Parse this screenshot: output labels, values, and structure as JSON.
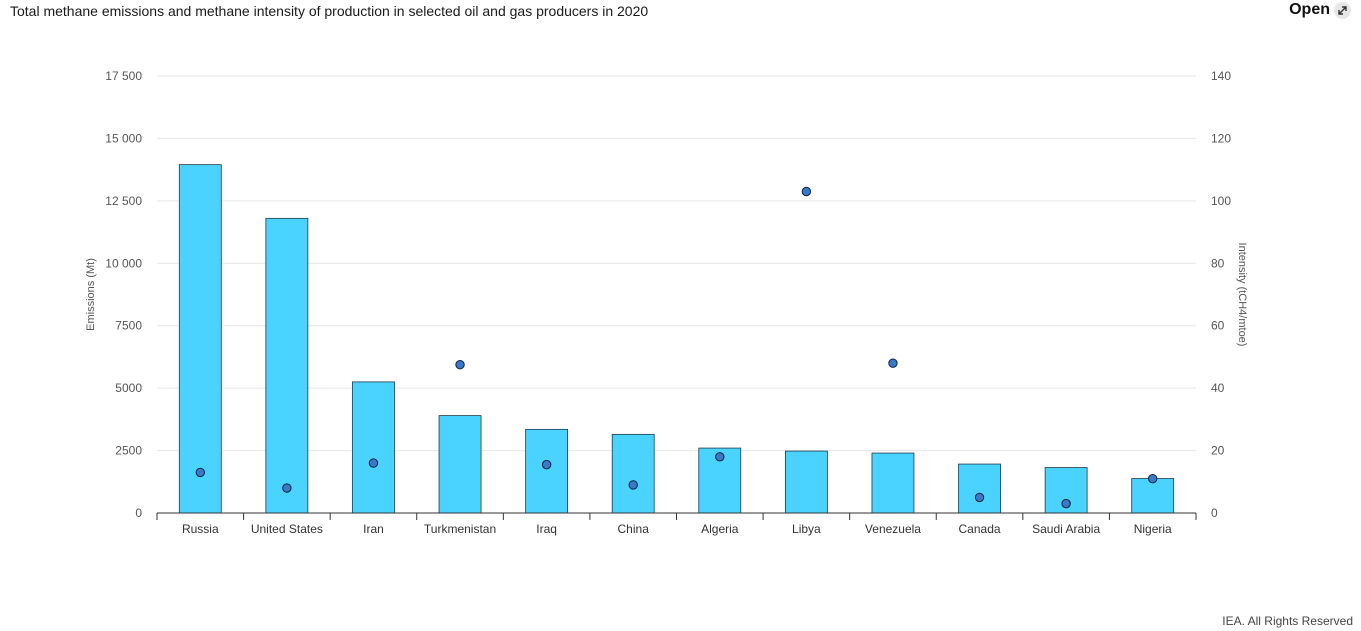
{
  "header": {
    "title": "Total methane emissions and methane intensity of production in selected oil and gas producers in 2020",
    "open_label": "Open"
  },
  "footer": {
    "credit": "IEA. All Rights Reserved"
  },
  "colors": {
    "bar": "#4ad3ff",
    "bar_stroke": "#1c3a4a",
    "dot": "#3a78c9",
    "dot_stroke": "#0d2440",
    "grid": "#e6e6e6"
  },
  "chart_data": {
    "type": "bar",
    "categories": [
      "Russia",
      "United States",
      "Iran",
      "Turkmenistan",
      "Iraq",
      "China",
      "Algeria",
      "Libya",
      "Venezuela",
      "Canada",
      "Saudi Arabia",
      "Nigeria"
    ],
    "series": [
      {
        "type": "bar",
        "axis": "left",
        "values": [
          13950,
          11800,
          5250,
          3900,
          3350,
          3150,
          2600,
          2480,
          2400,
          1960,
          1820,
          1380
        ]
      },
      {
        "type": "scatter",
        "axis": "right",
        "values": [
          13,
          8,
          16,
          47.5,
          15.5,
          9,
          18,
          103,
          48,
          5,
          3,
          11
        ]
      }
    ],
    "ylabel": "Emissions (Mt)",
    "ylabel_right": "Intensity (tCH4/mtoe)",
    "ylim": [
      0,
      17500
    ],
    "ylim_right": [
      0,
      140
    ],
    "yticks": [
      0,
      2500,
      5000,
      7500,
      10000,
      12500,
      15000,
      17500
    ],
    "yticks_labels": [
      "0",
      "2500",
      "5000",
      "7500",
      "10 000",
      "12 500",
      "15 000",
      "17 500"
    ],
    "yticks_right": [
      "0",
      "20",
      "40",
      "60",
      "80",
      "100",
      "120",
      "140"
    ],
    "grid": true
  }
}
